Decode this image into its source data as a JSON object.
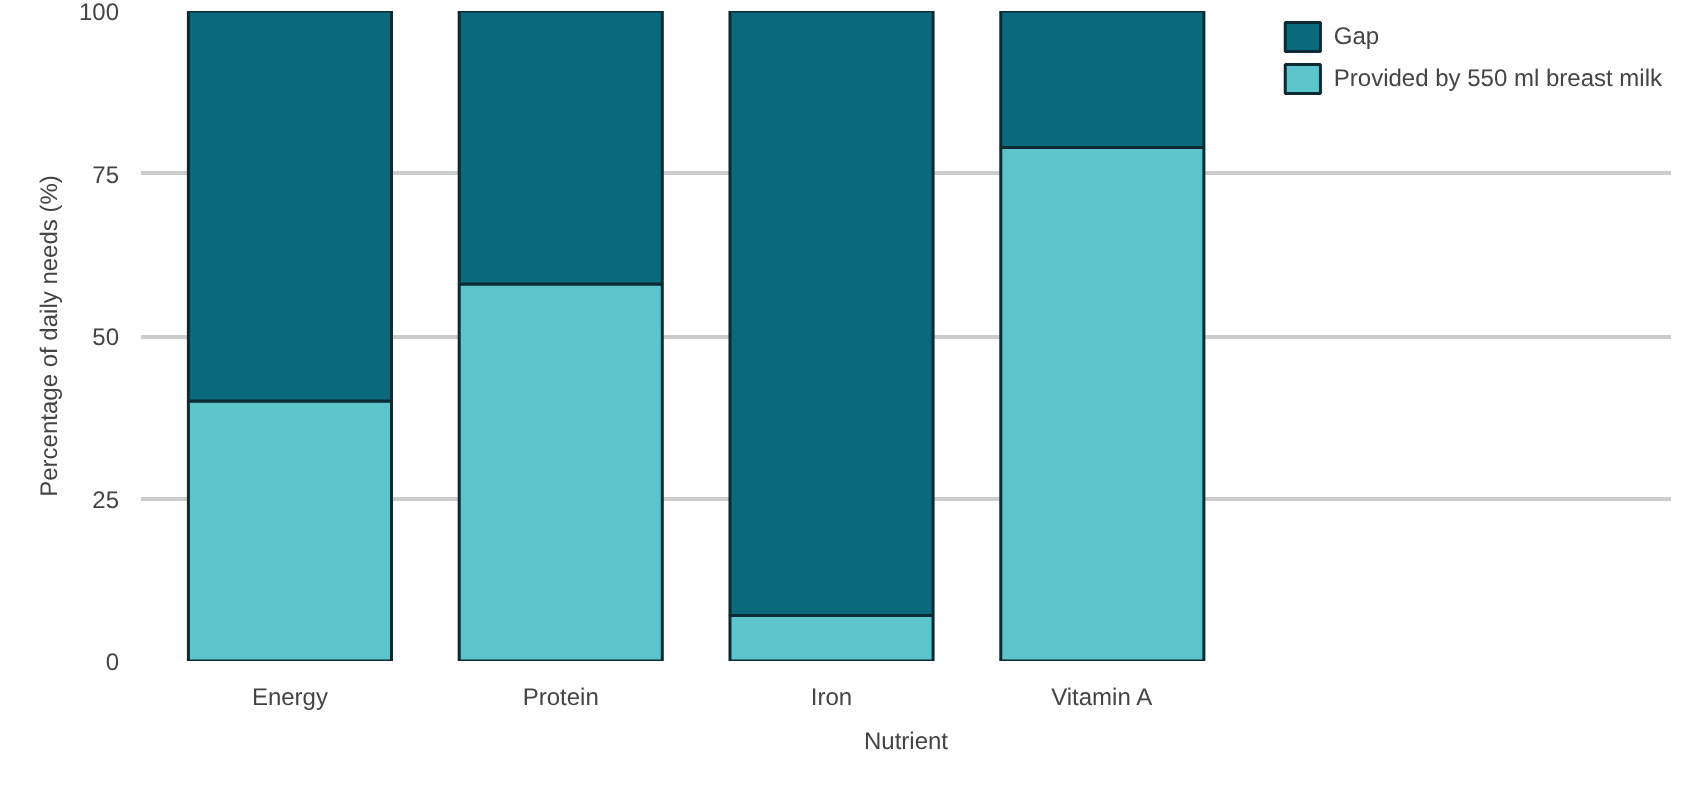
{
  "chart_data": {
    "type": "bar",
    "stacked": true,
    "xlabel": "Nutrient",
    "ylabel": "Percentage of daily needs (%)",
    "categories": [
      "Energy",
      "Protein",
      "Iron",
      "Vitamin A"
    ],
    "series": [
      {
        "name": "Provided by 550 ml breast milk",
        "color": "#5bc5cb",
        "values": [
          40,
          58,
          7,
          79
        ]
      },
      {
        "name": "Gap",
        "color": "#0a6a7c",
        "values": [
          60,
          42,
          93,
          21
        ]
      }
    ],
    "ylim": [
      0,
      100
    ],
    "yticks": [
      0,
      25,
      50,
      75,
      100
    ],
    "grid": "y",
    "legend": "right"
  }
}
